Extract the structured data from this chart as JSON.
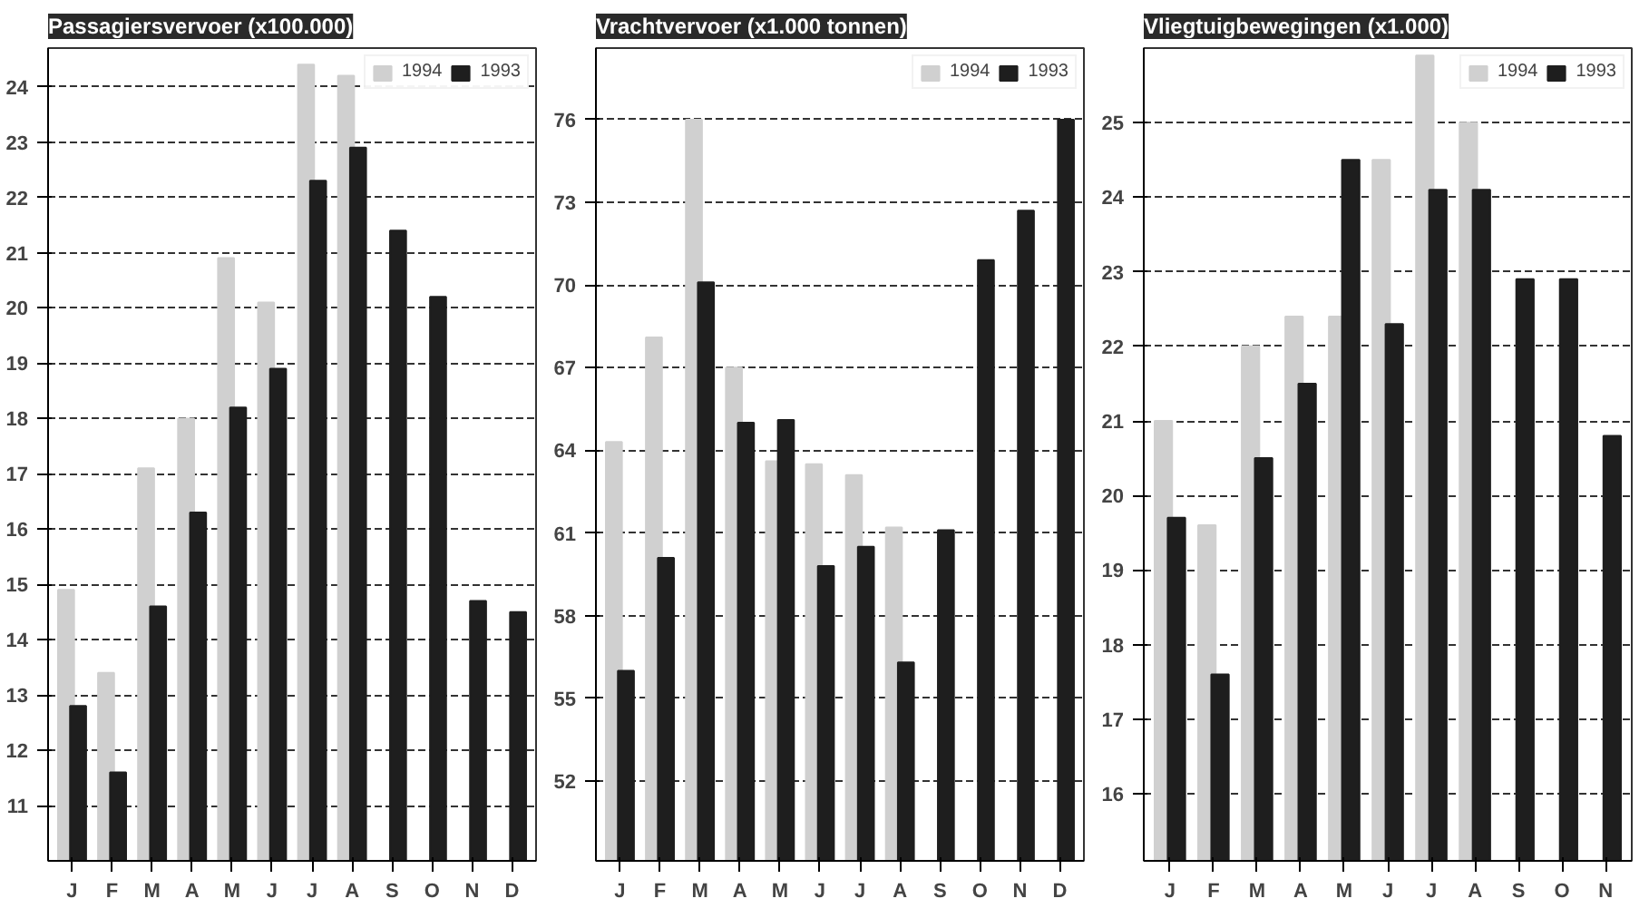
{
  "chart_data": [
    {
      "type": "bar",
      "title": "Passagiersvervoer (x100.000)",
      "categories": [
        "J",
        "F",
        "M",
        "A",
        "M",
        "J",
        "J",
        "A",
        "S",
        "O",
        "N",
        "D"
      ],
      "ylim": [
        10,
        24.7
      ],
      "yticks": [
        11,
        12,
        13,
        14,
        15,
        16,
        17,
        18,
        19,
        20,
        21,
        22,
        23,
        24
      ],
      "grid": "y",
      "legend": "top right",
      "series": [
        {
          "name": "1994",
          "color": "#d0d0d0",
          "values": [
            14.9,
            13.4,
            17.1,
            18.0,
            20.9,
            20.1,
            24.4,
            24.2,
            null,
            null,
            null,
            null
          ]
        },
        {
          "name": "1993",
          "color": "#1e1e1e",
          "values": [
            12.8,
            11.6,
            14.6,
            16.3,
            18.2,
            18.9,
            22.3,
            22.9,
            21.4,
            20.2,
            14.7,
            14.5
          ]
        }
      ]
    },
    {
      "type": "bar",
      "title": "Vrachtvervoer (x1.000 tonnen)",
      "categories": [
        "J",
        "F",
        "M",
        "A",
        "M",
        "J",
        "J",
        "A",
        "S",
        "O",
        "N",
        "D"
      ],
      "ylim": [
        49.1,
        78.6
      ],
      "yticks": [
        52,
        55,
        58,
        61,
        64,
        67,
        70,
        73,
        76
      ],
      "grid": "y",
      "legend": "top right",
      "series": [
        {
          "name": "1994",
          "color": "#d0d0d0",
          "values": [
            64.3,
            68.1,
            76.0,
            67.0,
            63.6,
            63.5,
            63.1,
            61.2,
            null,
            null,
            null,
            null
          ]
        },
        {
          "name": "1993",
          "color": "#1e1e1e",
          "values": [
            56.0,
            60.1,
            70.1,
            65.0,
            65.1,
            59.8,
            60.5,
            56.3,
            61.1,
            70.9,
            72.7,
            76.0
          ]
        }
      ]
    },
    {
      "type": "bar",
      "title": "Vliegtuigbewegingen (x1.000)",
      "categories": [
        "J",
        "F",
        "M",
        "A",
        "M",
        "J",
        "J",
        "A",
        "S",
        "O",
        "N"
      ],
      "ylim": [
        15.1,
        26.0
      ],
      "yticks": [
        16,
        17,
        18,
        19,
        20,
        21,
        22,
        23,
        24,
        25
      ],
      "grid": "y",
      "legend": "top right",
      "series": [
        {
          "name": "1994",
          "color": "#d0d0d0",
          "values": [
            21.0,
            19.6,
            22.0,
            22.4,
            22.4,
            24.5,
            25.9,
            25.0,
            null,
            null,
            null
          ]
        },
        {
          "name": "1993",
          "color": "#1e1e1e",
          "values": [
            19.7,
            17.6,
            20.5,
            21.5,
            24.5,
            22.3,
            24.1,
            24.1,
            22.9,
            22.9,
            20.8
          ]
        }
      ]
    }
  ]
}
